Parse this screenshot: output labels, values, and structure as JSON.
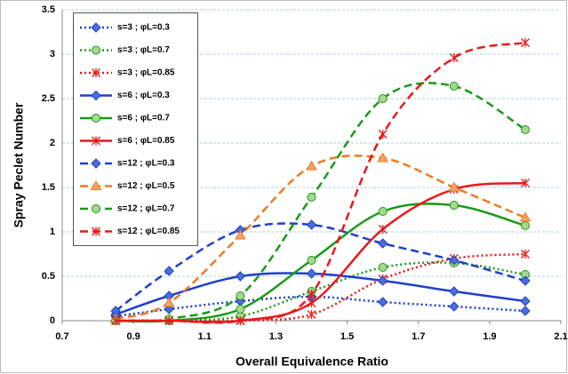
{
  "chart_data": {
    "type": "line",
    "x_label": "Overall Equivalence Ratio",
    "y_label": "Spray Peclet Number",
    "x": [
      0.85,
      1.0,
      1.2,
      1.4,
      1.6,
      1.8,
      2.0
    ],
    "xlim": [
      0.7,
      2.1
    ],
    "xticks": [
      0.7,
      0.9,
      1.1,
      1.3,
      1.5,
      1.7,
      1.9,
      2.1
    ],
    "ylim": [
      0,
      3.5
    ],
    "yticks": [
      0,
      0.5,
      1,
      1.5,
      2,
      2.5,
      3,
      3.5
    ],
    "grid": true,
    "legend": "upper left",
    "series": [
      {
        "name": "s=3 ;  φL=0.3",
        "color": "#1f3fcc",
        "fill": "#4a6fd6",
        "dash": "dotted",
        "marker": "diamond",
        "values": [
          0.05,
          0.13,
          0.22,
          0.27,
          0.21,
          0.16,
          0.11
        ]
      },
      {
        "name": "s=3 ;  φL=0.7",
        "color": "#1a9a1a",
        "fill": "#a6d98e",
        "dash": "dotted",
        "marker": "circle",
        "values": [
          0,
          0,
          0.05,
          0.33,
          0.6,
          0.65,
          0.52
        ]
      },
      {
        "name": "s=3 ;  φL=0.85",
        "color": "#e8191a",
        "fill": "#e8191a",
        "dash": "dotted",
        "marker": "asterisk",
        "values": [
          0,
          0,
          0,
          0.07,
          0.47,
          0.7,
          0.75
        ]
      },
      {
        "name": "s=6 ;  φL=0.3",
        "color": "#1f3fcc",
        "fill": "#4a6fd6",
        "dash": "solid",
        "marker": "diamond",
        "values": [
          0.07,
          0.28,
          0.5,
          0.53,
          0.45,
          0.33,
          0.22
        ]
      },
      {
        "name": "s=6 ;  φL=0.7",
        "color": "#1a9a1a",
        "fill": "#a6d98e",
        "dash": "solid",
        "marker": "circle",
        "values": [
          0,
          0,
          0.13,
          0.68,
          1.23,
          1.3,
          1.07
        ]
      },
      {
        "name": "s=6 ;  φL=0.85",
        "color": "#e8191a",
        "fill": "#e8191a",
        "dash": "solid",
        "marker": "asterisk",
        "values": [
          0,
          0,
          0,
          0.2,
          1.03,
          1.48,
          1.55
        ]
      },
      {
        "name": "s=12 ;  φL=0.3",
        "color": "#1f3fcc",
        "fill": "#4a6fd6",
        "dash": "dashed",
        "marker": "diamond",
        "values": [
          0.11,
          0.56,
          1.02,
          1.08,
          0.87,
          0.68,
          0.45
        ]
      },
      {
        "name": "s=12 ;  φL=0.5",
        "color": "#f07a20",
        "fill": "#f4a46a",
        "dash": "dashed",
        "marker": "triangle",
        "values": [
          0.02,
          0.2,
          0.96,
          1.74,
          1.83,
          1.5,
          1.16
        ]
      },
      {
        "name": "s=12 ;  φL=0.7",
        "color": "#1a9a1a",
        "fill": "#a6d98e",
        "dash": "dashed",
        "marker": "circle",
        "values": [
          0,
          0.02,
          0.28,
          1.39,
          2.5,
          2.64,
          2.15
        ]
      },
      {
        "name": "s=12 ;  φL=0.85",
        "color": "#e8191a",
        "fill": "#e8191a",
        "dash": "dashed",
        "marker": "asterisk",
        "values": [
          0,
          0,
          0,
          0.3,
          2.1,
          2.96,
          3.13
        ]
      }
    ]
  }
}
